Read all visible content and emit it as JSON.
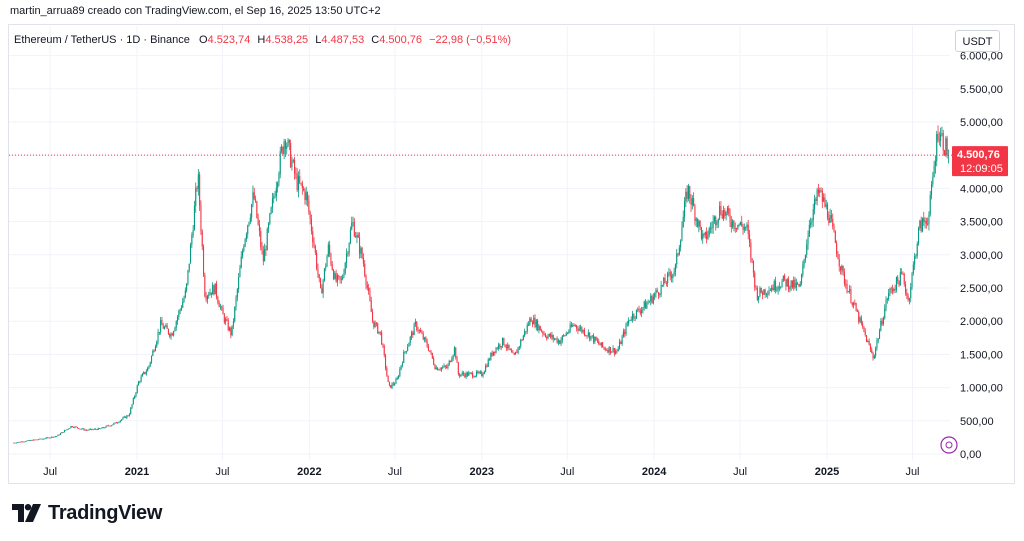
{
  "header": {
    "author_line": "martin_arrua89 creado con TradingView.com, el Sep 16, 2025 13:50 UTC+2"
  },
  "legend": {
    "symbol": "Ethereum / TetherUS · 1D · Binance",
    "o_label": "O",
    "o_value": "4.523,74",
    "h_label": "H",
    "h_value": "4.538,25",
    "l_label": "L",
    "l_value": "4.487,53",
    "c_label": "C",
    "c_value": "4.500,76",
    "change": "−22,98 (−0,51%)"
  },
  "currency_button": "USDT",
  "price_tag": {
    "price": "4.500,76",
    "countdown": "12:09:05"
  },
  "brand": {
    "name": "TradingView"
  },
  "colors": {
    "up": "#089981",
    "down": "#f23645",
    "grid": "#f0f3fa",
    "text": "#131722",
    "price_line": "#f23645",
    "event_badge": "#9c27b0"
  },
  "icons": {
    "logo": "tradingview-logo-icon",
    "event": "event-badge-icon"
  },
  "chart_data": {
    "type": "candlestick",
    "title": "Ethereum / TetherUS · 1D · Binance",
    "xlabel": "",
    "ylabel": "",
    "ylim": [
      0,
      6000
    ],
    "y_ticks": [
      0,
      500,
      1000,
      1500,
      2000,
      2500,
      3000,
      3500,
      4000,
      4500,
      5000,
      5500,
      6000
    ],
    "y_tick_labels": [
      "0,00",
      "500,00",
      "1.000,00",
      "1.500,00",
      "2.000,00",
      "2.500,00",
      "3.000,00",
      "3.500,00",
      "4.000,00",
      "4.500,00",
      "5.000,00",
      "5.500,00",
      "6.000,00"
    ],
    "x_ticks": [
      {
        "label": "Jul",
        "date": "2020-07-01"
      },
      {
        "label": "2021",
        "date": "2021-01-01"
      },
      {
        "label": "Jul",
        "date": "2021-07-01"
      },
      {
        "label": "2022",
        "date": "2022-01-01"
      },
      {
        "label": "Jul",
        "date": "2022-07-01"
      },
      {
        "label": "2023",
        "date": "2023-01-01"
      },
      {
        "label": "Jul",
        "date": "2023-07-01"
      },
      {
        "label": "2024",
        "date": "2024-01-01"
      },
      {
        "label": "Jul",
        "date": "2024-07-01"
      },
      {
        "label": "2025",
        "date": "2025-01-01"
      },
      {
        "label": "Jul",
        "date": "2025-07-01"
      }
    ],
    "last_close": 4500.76,
    "series": [
      {
        "name": "ETHUSDT",
        "points": [
          [
            "2020-04-15",
            170
          ],
          [
            "2020-05-15",
            200
          ],
          [
            "2020-06-15",
            230
          ],
          [
            "2020-07-15",
            270
          ],
          [
            "2020-08-15",
            420
          ],
          [
            "2020-09-15",
            360
          ],
          [
            "2020-10-15",
            380
          ],
          [
            "2020-11-15",
            460
          ],
          [
            "2020-12-15",
            590
          ],
          [
            "2021-01-05",
            1100
          ],
          [
            "2021-01-25",
            1300
          ],
          [
            "2021-02-20",
            1950
          ],
          [
            "2021-03-15",
            1800
          ],
          [
            "2021-04-15",
            2450
          ],
          [
            "2021-05-10",
            4200
          ],
          [
            "2021-05-25",
            2400
          ],
          [
            "2021-06-15",
            2500
          ],
          [
            "2021-07-01",
            2100
          ],
          [
            "2021-07-20",
            1800
          ],
          [
            "2021-08-15",
            3200
          ],
          [
            "2021-09-05",
            3900
          ],
          [
            "2021-09-25",
            2900
          ],
          [
            "2021-10-25",
            4200
          ],
          [
            "2021-11-10",
            4800
          ],
          [
            "2021-12-05",
            4100
          ],
          [
            "2021-12-25",
            3900
          ],
          [
            "2022-01-10",
            3200
          ],
          [
            "2022-01-25",
            2400
          ],
          [
            "2022-02-10",
            3100
          ],
          [
            "2022-02-25",
            2600
          ],
          [
            "2022-03-10",
            2600
          ],
          [
            "2022-04-02",
            3500
          ],
          [
            "2022-04-25",
            2900
          ],
          [
            "2022-05-15",
            2000
          ],
          [
            "2022-06-01",
            1800
          ],
          [
            "2022-06-18",
            1000
          ],
          [
            "2022-07-05",
            1100
          ],
          [
            "2022-07-20",
            1500
          ],
          [
            "2022-08-14",
            1950
          ],
          [
            "2022-09-10",
            1600
          ],
          [
            "2022-09-25",
            1300
          ],
          [
            "2022-10-20",
            1300
          ],
          [
            "2022-11-05",
            1600
          ],
          [
            "2022-11-12",
            1200
          ],
          [
            "2022-12-15",
            1200
          ],
          [
            "2023-01-01",
            1200
          ],
          [
            "2023-01-25",
            1550
          ],
          [
            "2023-02-15",
            1700
          ],
          [
            "2023-03-10",
            1450
          ],
          [
            "2023-04-15",
            2050
          ],
          [
            "2023-05-15",
            1800
          ],
          [
            "2023-06-15",
            1700
          ],
          [
            "2023-07-15",
            1950
          ],
          [
            "2023-08-15",
            1800
          ],
          [
            "2023-09-15",
            1600
          ],
          [
            "2023-10-15",
            1550
          ],
          [
            "2023-11-10",
            2050
          ],
          [
            "2023-12-15",
            2250
          ],
          [
            "2024-01-15",
            2500
          ],
          [
            "2024-02-15",
            2800
          ],
          [
            "2024-03-12",
            4000
          ],
          [
            "2024-04-15",
            3200
          ],
          [
            "2024-05-20",
            3700
          ],
          [
            "2024-06-15",
            3500
          ],
          [
            "2024-07-15",
            3400
          ],
          [
            "2024-08-05",
            2400
          ],
          [
            "2024-09-01",
            2500
          ],
          [
            "2024-10-01",
            2600
          ],
          [
            "2024-11-05",
            2500
          ],
          [
            "2024-11-25",
            3500
          ],
          [
            "2024-12-15",
            3950
          ],
          [
            "2025-01-05",
            3600
          ],
          [
            "2025-02-03",
            2700
          ],
          [
            "2025-03-01",
            2200
          ],
          [
            "2025-04-09",
            1450
          ],
          [
            "2025-05-10",
            2400
          ],
          [
            "2025-06-10",
            2700
          ],
          [
            "2025-06-22",
            2300
          ],
          [
            "2025-07-15",
            3400
          ],
          [
            "2025-08-05",
            3600
          ],
          [
            "2025-08-24",
            4900
          ],
          [
            "2025-09-16",
            4500
          ]
        ]
      }
    ],
    "crosshair_price": 4500.76
  }
}
